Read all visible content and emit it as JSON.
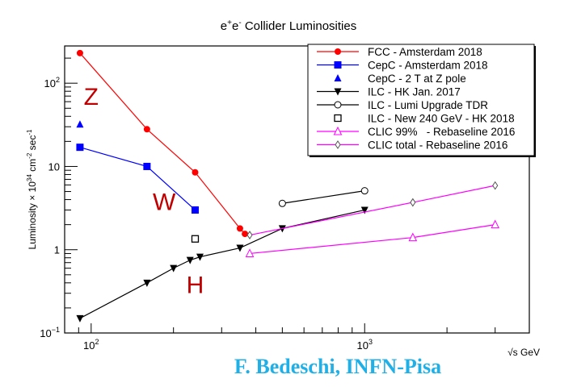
{
  "chart_data": {
    "type": "line",
    "title": "e+e- Collider Luminosities",
    "title_parts": {
      "base1": "e",
      "sup1": "+",
      "base2": "e",
      "sup2": "-",
      "rest": " Collider Luminosities"
    },
    "xlabel": "√s GeV",
    "ylabel": "Luminosity × 10^34 cm^-2 sec^-1",
    "ylabel_parts": {
      "a": "Luminosity × 10",
      "s1": "34",
      "b": " cm",
      "s2": "-2",
      "c": " sec",
      "s3": "-1"
    },
    "xscale": "log",
    "yscale": "log",
    "xlim": [
      80,
      4000
    ],
    "ylim": [
      0.1,
      280
    ],
    "x_ticks": [
      {
        "value": 100,
        "base": "10",
        "exp": "2"
      },
      {
        "value": 1000,
        "base": "10",
        "exp": "3"
      }
    ],
    "y_ticks": [
      {
        "value": 0.1,
        "base": "10",
        "exp": "−1"
      },
      {
        "value": 1,
        "base": "1",
        "exp": ""
      },
      {
        "value": 10,
        "base": "10",
        "exp": ""
      },
      {
        "value": 100,
        "base": "10",
        "exp": "2"
      }
    ],
    "legend_position": "top-right",
    "series": [
      {
        "name": "FCC - Amsterdam 2018",
        "color": "#ff0000",
        "marker": "circle",
        "line": true,
        "x": [
          91,
          160,
          240,
          350,
          365
        ],
        "y": [
          230,
          28,
          8.5,
          1.8,
          1.55
        ]
      },
      {
        "name": "CepC - Amsterdam 2018",
        "color": "#0000ff",
        "marker": "square",
        "line": true,
        "x": [
          91,
          160,
          240
        ],
        "y": [
          17,
          10,
          3
        ]
      },
      {
        "name": "CepC - 2 T at Z pole",
        "color": "#0000ff",
        "marker": "triangle-up",
        "line": false,
        "x": [
          91
        ],
        "y": [
          32
        ]
      },
      {
        "name": "ILC - HK Jan. 2017",
        "color": "#000000",
        "marker": "triangle-down",
        "line": true,
        "x": [
          91,
          160,
          200,
          230,
          250,
          350,
          500,
          1000
        ],
        "y": [
          0.15,
          0.4,
          0.6,
          0.75,
          0.82,
          1.05,
          1.8,
          3.0
        ]
      },
      {
        "name": "ILC - Lumi Upgrade TDR",
        "color": "#000000",
        "marker": "open-circle",
        "line": true,
        "x": [
          500,
          1000
        ],
        "y": [
          3.6,
          5.1
        ]
      },
      {
        "name": "ILC - New 240 GeV - HK 2018",
        "color": "#000000",
        "marker": "open-square",
        "line": false,
        "x": [
          240
        ],
        "y": [
          1.35
        ]
      },
      {
        "name": "CLIC 99%   - Rebaseline 2016",
        "color": "#ff00ff",
        "marker": "open-triangle",
        "line": true,
        "x": [
          380,
          1500,
          3000
        ],
        "y": [
          0.9,
          1.4,
          2.0
        ]
      },
      {
        "name": "CLIC total - Rebaseline 2016",
        "color": "#ff00ff",
        "marker": "open-diamond",
        "line": true,
        "x": [
          380,
          1500,
          3000
        ],
        "y": [
          1.5,
          3.7,
          5.9
        ]
      }
    ],
    "annotations": [
      {
        "text": "Z",
        "x": 100,
        "y": 55,
        "color": "#c00000"
      },
      {
        "text": "W",
        "x": 185,
        "y": 3.0,
        "color": "#c00000"
      },
      {
        "text": "H",
        "x": 240,
        "y": 0.3,
        "color": "#c00000"
      }
    ]
  },
  "credit": "F. Bedeschi, INFN-Pisa"
}
